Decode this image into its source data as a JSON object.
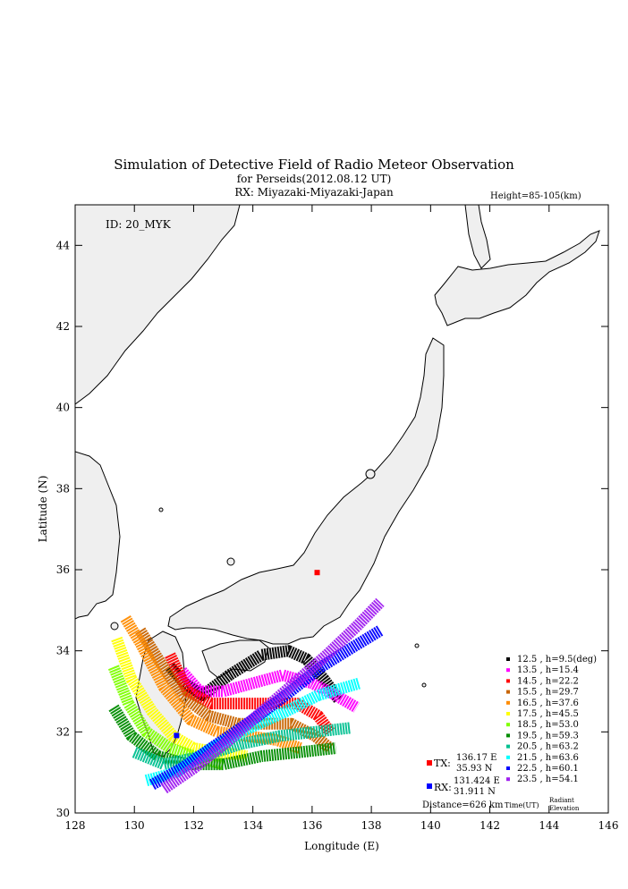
{
  "title": "Simulation of Detective Field of Radio Meteor Observation",
  "subtitle": "for Perseids(2012.08.12 UT)",
  "rx_line": "RX: Miyazaki-Miyazaki-Japan",
  "height_label": "Height=85-105(km)",
  "id_label": "ID: 20_MYK",
  "xlabel": "Longitude (E)",
  "ylabel": "Latitude (N)",
  "x_ticks": [
    "128",
    "130",
    "132",
    "134",
    "136",
    "138",
    "140",
    "142",
    "144",
    "146"
  ],
  "y_ticks": [
    "30",
    "32",
    "34",
    "36",
    "38",
    "40",
    "42",
    "44"
  ],
  "tx": {
    "label": "TX:",
    "lon_text": "136.17 E",
    "lat_text": "35.93 N",
    "lon": 136.17,
    "lat": 35.93,
    "color": "#ff0000"
  },
  "rx": {
    "label": "RX:",
    "lon_text": "131.424 E",
    "lat_text": "31.911 N",
    "lon": 131.424,
    "lat": 31.911,
    "color": "#0000ff"
  },
  "distance": "Distance=626 km",
  "legend_footer": {
    "time": "Time(UT)",
    "radiant": "Radiant",
    "elevation": "Elevation"
  },
  "legend": [
    {
      "time": "12.5",
      "text": "12.5 ,  h=9.5(deg)",
      "color": "#000000"
    },
    {
      "time": "13.5",
      "text": "13.5 ,  h=15.4",
      "color": "#ff00ff"
    },
    {
      "time": "14.5",
      "text": "14.5 ,  h=22.2",
      "color": "#ff0000"
    },
    {
      "time": "15.5",
      "text": "15.5 ,  h=29.7",
      "color": "#c86400"
    },
    {
      "time": "16.5",
      "text": "16.5 ,  h=37.6",
      "color": "#ff8c00"
    },
    {
      "time": "17.5",
      "text": "17.5 ,  h=45.5",
      "color": "#ffff00"
    },
    {
      "time": "18.5",
      "text": "18.5 ,  h=53.0",
      "color": "#80ff00"
    },
    {
      "time": "19.5",
      "text": "19.5 ,  h=59.3",
      "color": "#008c00"
    },
    {
      "time": "20.5",
      "text": "20.5 ,  h=63.2",
      "color": "#00c090"
    },
    {
      "time": "21.5",
      "text": "21.5 ,  h=63.6",
      "color": "#00ffff"
    },
    {
      "time": "22.5",
      "text": "22.5 ,  h=60.1",
      "color": "#0000ff"
    },
    {
      "time": "23.5",
      "text": "23.5 ,  h=54.1",
      "color": "#a020f0"
    }
  ],
  "chart_data": {
    "type": "scatter",
    "xlim": [
      128,
      146
    ],
    "ylim": [
      30,
      45
    ],
    "bands": [
      {
        "name": "12.5",
        "color": "#000000",
        "points": [
          [
            131.2,
            33.6
          ],
          [
            131.7,
            33.2
          ],
          [
            132.3,
            32.9
          ],
          [
            133.2,
            33.4
          ],
          [
            134.3,
            33.9
          ],
          [
            135.2,
            34.0
          ],
          [
            135.8,
            33.8
          ],
          [
            136.4,
            33.3
          ],
          [
            136.9,
            32.8
          ]
        ]
      },
      {
        "name": "13.5",
        "color": "#ff00ff",
        "points": [
          [
            131.6,
            33.5
          ],
          [
            132.2,
            33.0
          ],
          [
            133.0,
            33.0
          ],
          [
            134.0,
            33.2
          ],
          [
            135.0,
            33.4
          ],
          [
            136.0,
            33.2
          ],
          [
            136.8,
            32.9
          ],
          [
            137.5,
            32.6
          ]
        ]
      },
      {
        "name": "14.5",
        "color": "#ff0000",
        "points": [
          [
            131.2,
            33.9
          ],
          [
            131.8,
            33.0
          ],
          [
            132.6,
            32.7
          ],
          [
            133.6,
            32.7
          ],
          [
            134.6,
            32.7
          ],
          [
            135.5,
            32.7
          ],
          [
            136.2,
            32.4
          ],
          [
            136.6,
            32.0
          ]
        ]
      },
      {
        "name": "15.5",
        "color": "#c86400",
        "points": [
          [
            130.2,
            34.5
          ],
          [
            130.8,
            33.8
          ],
          [
            131.6,
            32.9
          ],
          [
            132.5,
            32.4
          ],
          [
            133.5,
            32.2
          ],
          [
            134.4,
            32.2
          ],
          [
            135.3,
            32.2
          ],
          [
            136.1,
            31.9
          ],
          [
            136.6,
            31.6
          ]
        ]
      },
      {
        "name": "16.5",
        "color": "#ff8c00",
        "points": [
          [
            129.7,
            34.8
          ],
          [
            130.2,
            34.2
          ],
          [
            131.0,
            33.1
          ],
          [
            131.9,
            32.3
          ],
          [
            132.8,
            32.0
          ],
          [
            133.8,
            31.9
          ],
          [
            134.8,
            31.8
          ],
          [
            135.6,
            31.6
          ]
        ]
      },
      {
        "name": "17.5",
        "color": "#ffff00",
        "points": [
          [
            129.4,
            34.3
          ],
          [
            129.9,
            33.3
          ],
          [
            130.6,
            32.5
          ],
          [
            131.3,
            31.9
          ],
          [
            132.0,
            31.6
          ],
          [
            132.8,
            31.5
          ],
          [
            133.8,
            31.4
          ]
        ]
      },
      {
        "name": "18.5",
        "color": "#80ff00",
        "points": [
          [
            129.3,
            33.6
          ],
          [
            129.8,
            32.7
          ],
          [
            130.4,
            32.0
          ],
          [
            131.2,
            31.6
          ],
          [
            132.0,
            31.4
          ],
          [
            133.0,
            31.2
          ]
        ]
      },
      {
        "name": "19.5",
        "color": "#008c00",
        "points": [
          [
            129.3,
            32.6
          ],
          [
            129.9,
            31.9
          ],
          [
            130.8,
            31.4
          ],
          [
            131.8,
            31.2
          ],
          [
            133.0,
            31.2
          ],
          [
            134.3,
            31.4
          ],
          [
            135.6,
            31.5
          ],
          [
            136.8,
            31.6
          ]
        ]
      },
      {
        "name": "20.5",
        "color": "#00c090",
        "points": [
          [
            130.0,
            31.5
          ],
          [
            131.0,
            31.2
          ],
          [
            132.3,
            31.4
          ],
          [
            133.6,
            31.7
          ],
          [
            134.9,
            31.9
          ],
          [
            136.1,
            32.0
          ],
          [
            137.3,
            32.1
          ]
        ]
      },
      {
        "name": "21.5",
        "color": "#00ffff",
        "points": [
          [
            130.4,
            30.8
          ],
          [
            131.4,
            31.0
          ],
          [
            132.6,
            31.6
          ],
          [
            133.9,
            32.1
          ],
          [
            135.1,
            32.5
          ],
          [
            136.2,
            32.9
          ],
          [
            137.6,
            33.2
          ]
        ]
      },
      {
        "name": "22.5",
        "color": "#0000ff",
        "points": [
          [
            130.6,
            30.7
          ],
          [
            131.6,
            31.1
          ],
          [
            132.8,
            31.7
          ],
          [
            134.0,
            32.3
          ],
          [
            135.1,
            32.9
          ],
          [
            136.3,
            33.6
          ],
          [
            137.4,
            34.1
          ],
          [
            138.3,
            34.5
          ]
        ]
      },
      {
        "name": "23.5",
        "color": "#a020f0",
        "points": [
          [
            131.0,
            30.6
          ],
          [
            132.0,
            31.1
          ],
          [
            133.2,
            31.8
          ],
          [
            134.3,
            32.5
          ],
          [
            135.4,
            33.2
          ],
          [
            136.5,
            33.9
          ],
          [
            137.5,
            34.6
          ],
          [
            138.3,
            35.2
          ]
        ]
      }
    ]
  }
}
